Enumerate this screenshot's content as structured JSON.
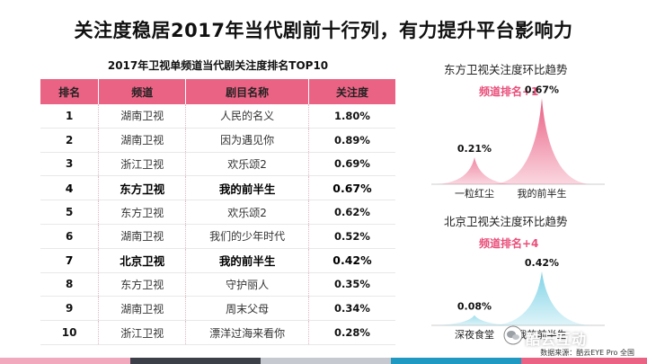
{
  "title": "关注度稳居2017年当代剧前十行列，有力提升平台影响力",
  "table": {
    "title": "2017年卫视单频道当代剧关注度排名TOP10",
    "headers": [
      "排名",
      "频道",
      "剧目名称",
      "关注度"
    ],
    "rows": [
      {
        "rank": "1",
        "channel": "湖南卫视",
        "drama": "人民的名义",
        "share": "1.80%",
        "highlight": false
      },
      {
        "rank": "2",
        "channel": "湖南卫视",
        "drama": "因为遇见你",
        "share": "0.89%",
        "highlight": false
      },
      {
        "rank": "3",
        "channel": "浙江卫视",
        "drama": "欢乐颂2",
        "share": "0.69%",
        "highlight": false
      },
      {
        "rank": "4",
        "channel": "东方卫视",
        "drama": "我的前半生",
        "share": "0.67%",
        "highlight": true
      },
      {
        "rank": "5",
        "channel": "东方卫视",
        "drama": "欢乐颂2",
        "share": "0.62%",
        "highlight": false
      },
      {
        "rank": "6",
        "channel": "湖南卫视",
        "drama": "我们的少年时代",
        "share": "0.52%",
        "highlight": false
      },
      {
        "rank": "7",
        "channel": "北京卫视",
        "drama": "我的前半生",
        "share": "0.42%",
        "highlight": true
      },
      {
        "rank": "8",
        "channel": "东方卫视",
        "drama": "守护丽人",
        "share": "0.35%",
        "highlight": false
      },
      {
        "rank": "9",
        "channel": "湖南卫视",
        "drama": "周末父母",
        "share": "0.34%",
        "highlight": false
      },
      {
        "rank": "10",
        "channel": "浙江卫视",
        "drama": "漂洋过海来看你",
        "share": "0.28%",
        "highlight": false
      }
    ]
  },
  "chart_data": [
    {
      "type": "area",
      "title": "东方卫视关注度环比趋势",
      "annotation": "频道排名+1",
      "categories": [
        "一粒红尘",
        "我的前半生"
      ],
      "values": [
        0.21,
        0.67
      ],
      "value_labels": [
        "0.21%",
        "0.67%"
      ],
      "ylim": [
        0,
        0.7
      ],
      "color": "#ea5f83"
    },
    {
      "type": "area",
      "title": "北京卫视关注度环比趋势",
      "annotation": "频道排名+4",
      "categories": [
        "深夜食堂",
        "我的前半生"
      ],
      "values": [
        0.08,
        0.42
      ],
      "value_labels": [
        "0.08%",
        "0.42%"
      ],
      "ylim": [
        0,
        0.7
      ],
      "color": "#7fd3e6"
    }
  ],
  "watermark": "酷云互动",
  "source": "数据来源：酷云EYE Pro 全国",
  "bottom_bar_colors": [
    "#f0a9bd",
    "#ffffff",
    "#3c3f48",
    "#c6c9cf",
    "#1f99c2",
    "#62c7df",
    "#ea6384"
  ]
}
